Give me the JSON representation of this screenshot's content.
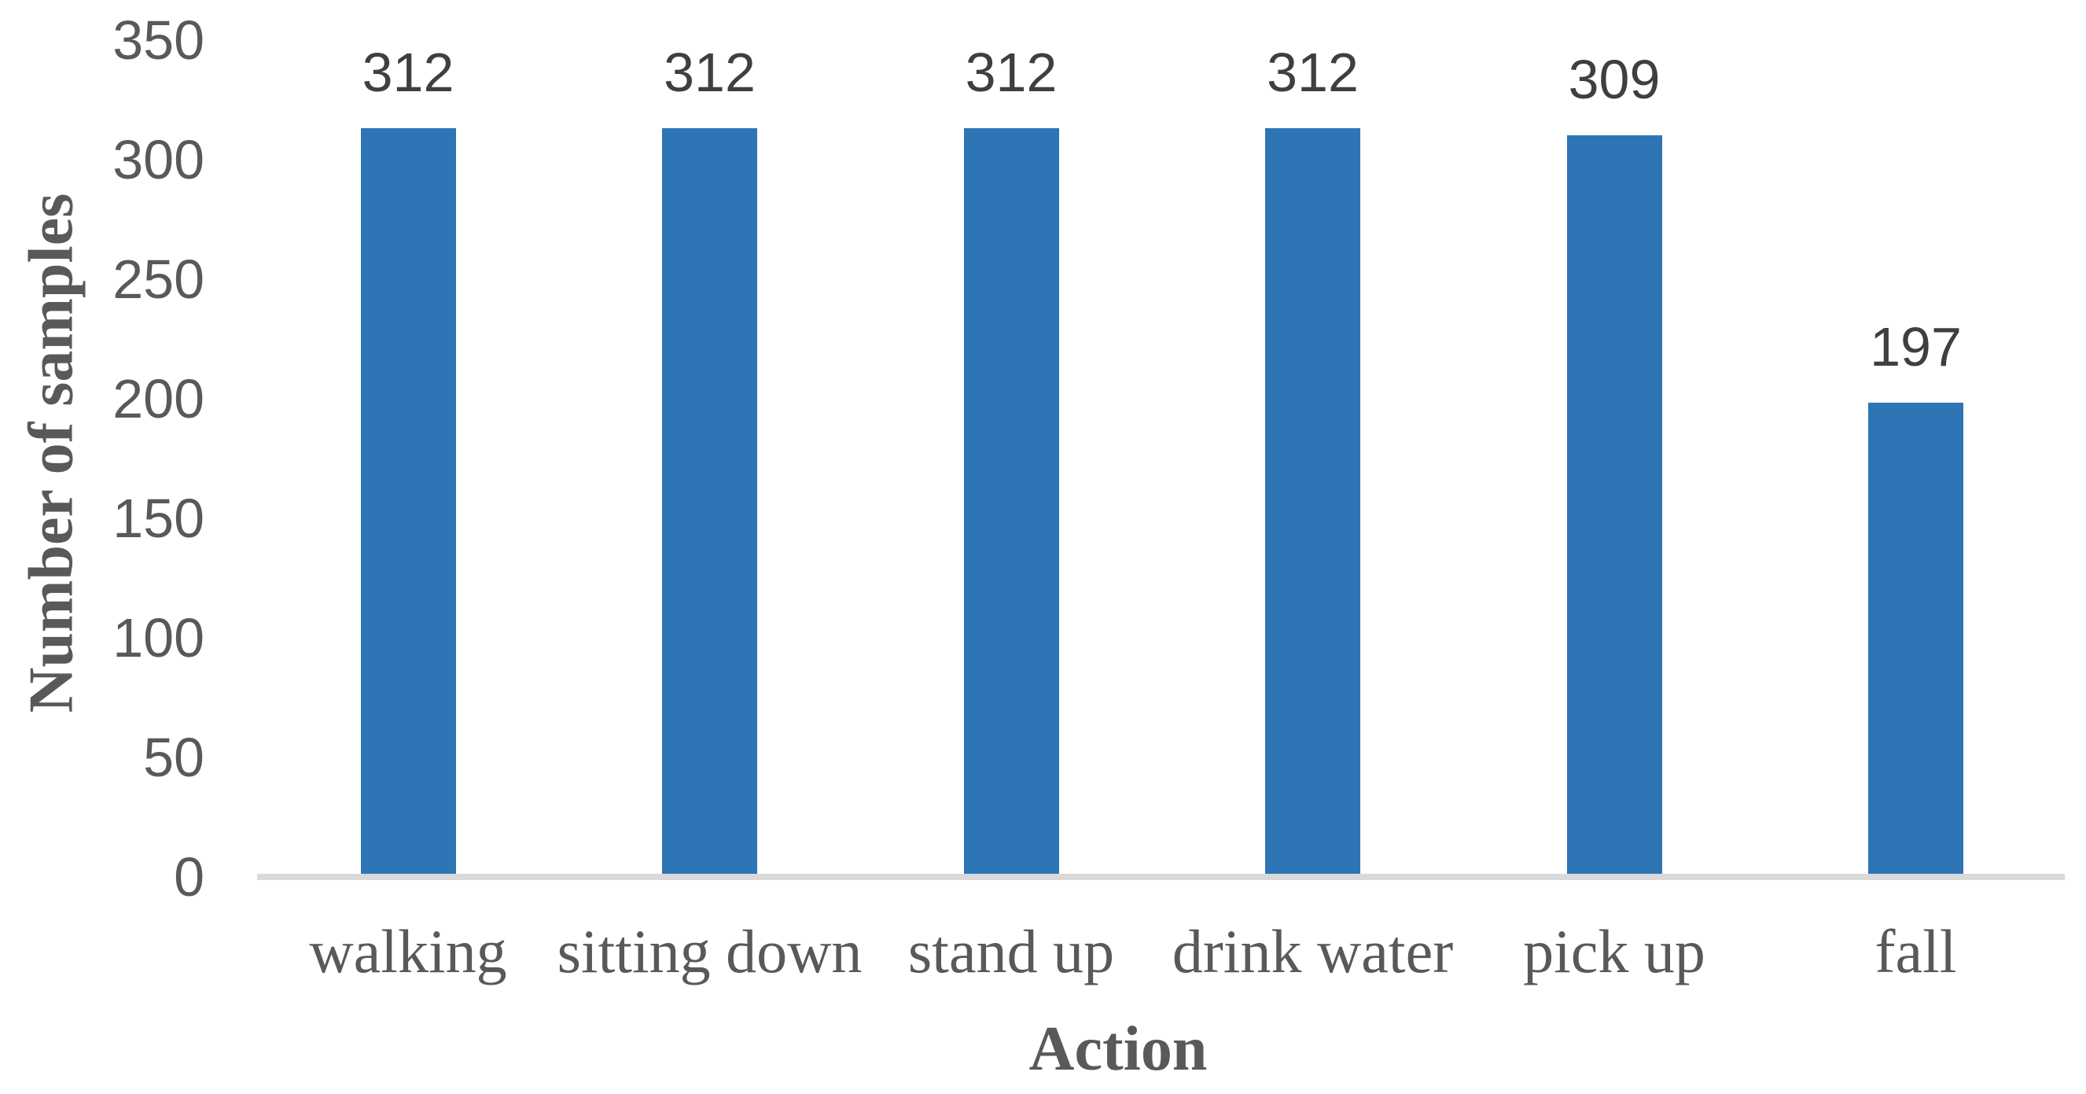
{
  "chart_data": {
    "type": "bar",
    "categories": [
      "walking",
      "sitting down",
      "stand up",
      "drink water",
      "pick up",
      "fall"
    ],
    "values": [
      312,
      312,
      312,
      312,
      309,
      197
    ],
    "xlabel": "Action",
    "ylabel": "Number of samples",
    "ylim": [
      0,
      350
    ],
    "yticks": [
      0,
      50,
      100,
      150,
      200,
      250,
      300,
      350
    ],
    "grid": false,
    "legend_position": "none",
    "data_labels_visible": true,
    "colors": {
      "bar": "#2E75B6",
      "axis_line": "#D9D9D9",
      "tick_label": "#595959",
      "category_label": "#595959",
      "axis_title": "#595959",
      "data_label": "#3F3F3F",
      "background": "#FFFFFF"
    }
  }
}
